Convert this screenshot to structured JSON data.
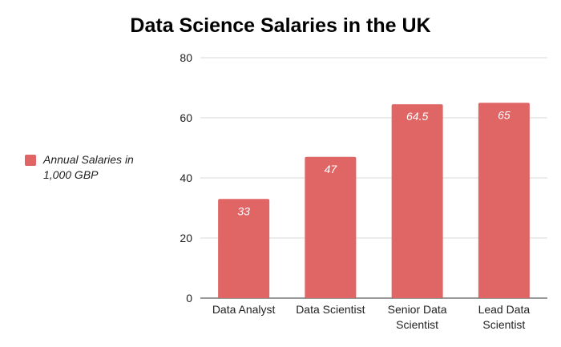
{
  "chart_data": {
    "type": "bar",
    "title": "Data Science Salaries in the UK",
    "categories": [
      [
        "Data Analyst"
      ],
      [
        "Data Scientist"
      ],
      [
        "Senior Data",
        "Scientist"
      ],
      [
        "Lead Data",
        "Scientist"
      ]
    ],
    "series": [
      {
        "name": "Annual Salaries in 1,000 GBP",
        "values": [
          33,
          47,
          64.5,
          65
        ],
        "color": "#e06666"
      }
    ],
    "data_labels": [
      "33",
      "47",
      "64.5",
      "65"
    ],
    "yticks": [
      "0",
      "20",
      "40",
      "60",
      "80"
    ],
    "ylim": [
      0,
      80
    ],
    "xlabel": "",
    "ylabel": "",
    "grid": true,
    "legend_position": "left"
  }
}
